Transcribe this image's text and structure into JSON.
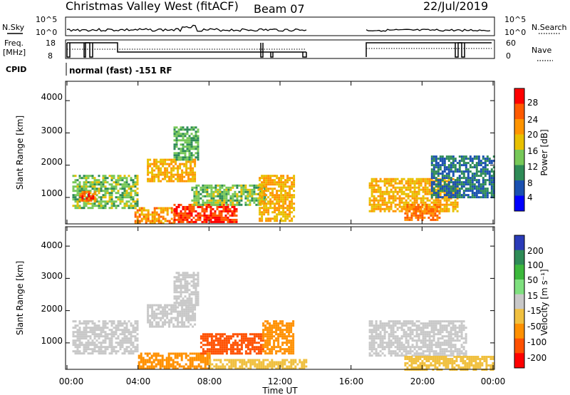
{
  "header": {
    "title": "Christmas Valley West (fitACF)",
    "beam": "Beam 07",
    "date": "22/Jul/2019"
  },
  "top_panels": {
    "nsky_label": "N.Sky",
    "nsky_ticks": [
      "10^5",
      "10^0"
    ],
    "nsearch_label": "N.Search",
    "nsearch_ticks": [
      "10^5",
      "10^0"
    ],
    "freq_label": "Freq.",
    "freq_unit": "[MHz]",
    "freq_ticks": [
      "18",
      "8"
    ],
    "nave_label": "Nave",
    "nave_ticks": [
      "60",
      "0"
    ],
    "cpid_label": "CPID",
    "cpid_text": "normal (fast) -151 RF"
  },
  "power_panel": {
    "ylabel": "Slant Range [km]",
    "yticks": [
      "4000",
      "3000",
      "2000",
      "1000"
    ],
    "colorbar_label": "Power [dB]",
    "colorbar_ticks": [
      "28",
      "24",
      "20",
      "16",
      "12",
      "8",
      "4"
    ],
    "colorbar_colors": [
      "#ff0000",
      "#ff5a00",
      "#ff9400",
      "#e8c000",
      "#77c858",
      "#2e8b57",
      "#1a50b0",
      "#0000ff"
    ]
  },
  "velocity_panel": {
    "ylabel": "Slant Range [km]",
    "yticks": [
      "4000",
      "3000",
      "2000",
      "1000"
    ],
    "colorbar_label": "Velocity [m s⁻¹]",
    "colorbar_ticks": [
      "200",
      "100",
      "50",
      "15",
      "-15",
      "-50",
      "-100",
      "-200"
    ],
    "colorbar_colors": [
      "#2a3bb8",
      "#2e8b57",
      "#3cb83c",
      "#7fe07f",
      "#c8c8c8",
      "#f0c040",
      "#ff9000",
      "#ff5000",
      "#ff0000"
    ]
  },
  "xaxis": {
    "label": "Time UT",
    "ticks": [
      "00:00",
      "04:00",
      "08:00",
      "12:00",
      "16:00",
      "20:00",
      "00:00"
    ]
  },
  "chart_data": [
    {
      "type": "heatmap",
      "title": "Power",
      "xlabel": "Time UT",
      "ylabel": "Slant Range [km]",
      "xlim": [
        0,
        24
      ],
      "ylim": [
        180,
        4600
      ],
      "colorbar": {
        "label": "Power [dB]",
        "range": [
          0,
          32
        ]
      },
      "data_gap_hours": [
        13.6,
        16.9
      ],
      "regions": [
        {
          "t0": 0.3,
          "t1": 4.0,
          "r0": 700,
          "r1": 1700,
          "value": 14
        },
        {
          "t0": 0.7,
          "t1": 1.6,
          "r0": 900,
          "r1": 1200,
          "value": 26
        },
        {
          "t0": 3.8,
          "t1": 6.0,
          "r0": 200,
          "r1": 700,
          "value": 22
        },
        {
          "t0": 6.0,
          "t1": 9.5,
          "r0": 250,
          "r1": 800,
          "value": 28
        },
        {
          "t0": 4.5,
          "t1": 7.2,
          "r0": 1500,
          "r1": 2200,
          "value": 20
        },
        {
          "t0": 6.0,
          "t1": 7.4,
          "r0": 2200,
          "r1": 3200,
          "value": 12
        },
        {
          "t0": 7.0,
          "t1": 11.2,
          "r0": 800,
          "r1": 1400,
          "value": 14
        },
        {
          "t0": 10.8,
          "t1": 12.8,
          "r0": 300,
          "r1": 1700,
          "value": 20
        },
        {
          "t0": 17.0,
          "t1": 22.0,
          "r0": 600,
          "r1": 1600,
          "value": 20
        },
        {
          "t0": 20.5,
          "t1": 24.0,
          "r0": 1000,
          "r1": 2300,
          "value": 8
        },
        {
          "t0": 19.0,
          "t1": 21.0,
          "r0": 300,
          "r1": 800,
          "value": 24
        }
      ]
    },
    {
      "type": "heatmap",
      "title": "Velocity",
      "xlabel": "Time UT",
      "ylabel": "Slant Range [km]",
      "xlim": [
        0,
        24
      ],
      "ylim": [
        180,
        4600
      ],
      "colorbar": {
        "label": "Velocity [m s⁻¹]",
        "range": [
          -250,
          250
        ]
      },
      "data_gap_hours": [
        13.6,
        16.9
      ],
      "regions": [
        {
          "t0": 0.3,
          "t1": 4.0,
          "r0": 700,
          "r1": 1700,
          "value": 0
        },
        {
          "t0": 4.0,
          "t1": 8.0,
          "r0": 200,
          "r1": 700,
          "value": -60
        },
        {
          "t0": 8.0,
          "t1": 13.5,
          "r0": 200,
          "r1": 500,
          "value": -40
        },
        {
          "t0": 4.5,
          "t1": 7.2,
          "r0": 1500,
          "r1": 2200,
          "value": 0
        },
        {
          "t0": 6.0,
          "t1": 7.4,
          "r0": 2200,
          "r1": 3200,
          "value": 0
        },
        {
          "t0": 7.5,
          "t1": 11.0,
          "r0": 700,
          "r1": 1300,
          "value": -110
        },
        {
          "t0": 11.0,
          "t1": 12.8,
          "r0": 700,
          "r1": 1700,
          "value": -60
        },
        {
          "t0": 17.0,
          "t1": 22.5,
          "r0": 600,
          "r1": 1700,
          "value": 0
        },
        {
          "t0": 19.0,
          "t1": 24.0,
          "r0": 200,
          "r1": 600,
          "value": -40
        }
      ]
    }
  ]
}
